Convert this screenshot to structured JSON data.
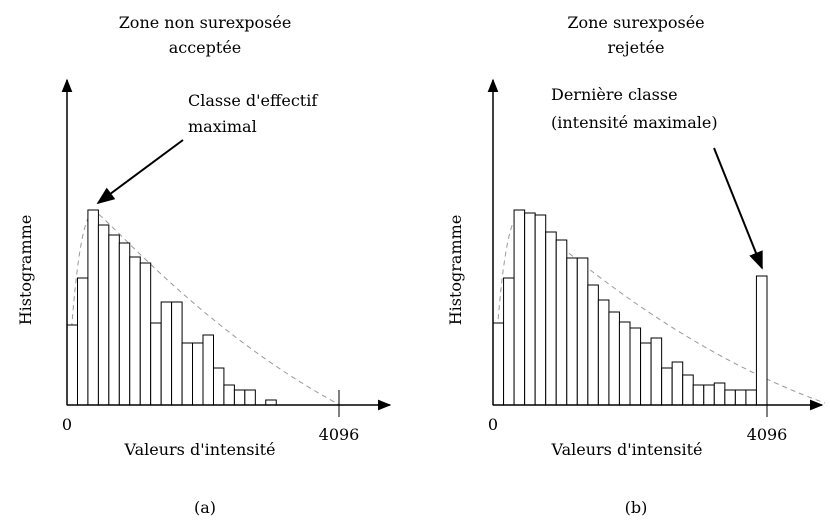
{
  "chart_data": [
    {
      "type": "histogram",
      "title": [
        "Zone non surexposée",
        "acceptée"
      ],
      "annotation": [
        "Classe d'effectif",
        "maximal"
      ],
      "ylabel": "Histogramme",
      "xlabel": "Valeurs d'intensité",
      "panel": "(a)",
      "bins": [
        0,
        158,
        315,
        473,
        630,
        788,
        945,
        1103,
        1260,
        1418,
        1575,
        1733,
        1890,
        2048,
        2206,
        2363,
        2521,
        2678,
        2836,
        2993,
        3151
      ],
      "values": [
        80,
        127,
        195,
        180,
        170,
        162,
        148,
        142,
        82,
        103,
        103,
        62,
        62,
        70,
        37,
        20,
        15,
        15,
        0,
        5
      ],
      "color": "#ffffff",
      "xlim": [
        0,
        4096
      ],
      "xticks": [
        0,
        4096
      ],
      "ylim": [
        0,
        320
      ]
    },
    {
      "type": "histogram",
      "title": [
        "Zone surexposée",
        "rejetée"
      ],
      "annotation": [
        "Dernière classe",
        "(intensité maximale)"
      ],
      "ylabel": "Histogramme",
      "xlabel": "Valeurs d'intensité",
      "panel": "(b)",
      "bins": [
        0,
        158,
        315,
        473,
        630,
        788,
        945,
        1103,
        1260,
        1418,
        1575,
        1733,
        1890,
        2048,
        2206,
        2363,
        2521,
        2678,
        2836,
        2993,
        3151,
        3308,
        3466,
        3623,
        3781,
        3938,
        4096
      ],
      "values": [
        82,
        127,
        195,
        192,
        190,
        173,
        165,
        147,
        147,
        120,
        105,
        93,
        83,
        77,
        62,
        67,
        37,
        43,
        30,
        20,
        20,
        22,
        15,
        15,
        15,
        129
      ],
      "color": "#ffffff",
      "xlim": [
        0,
        4096
      ],
      "xticks": [
        0,
        4096
      ],
      "ylim": [
        0,
        320
      ]
    }
  ]
}
